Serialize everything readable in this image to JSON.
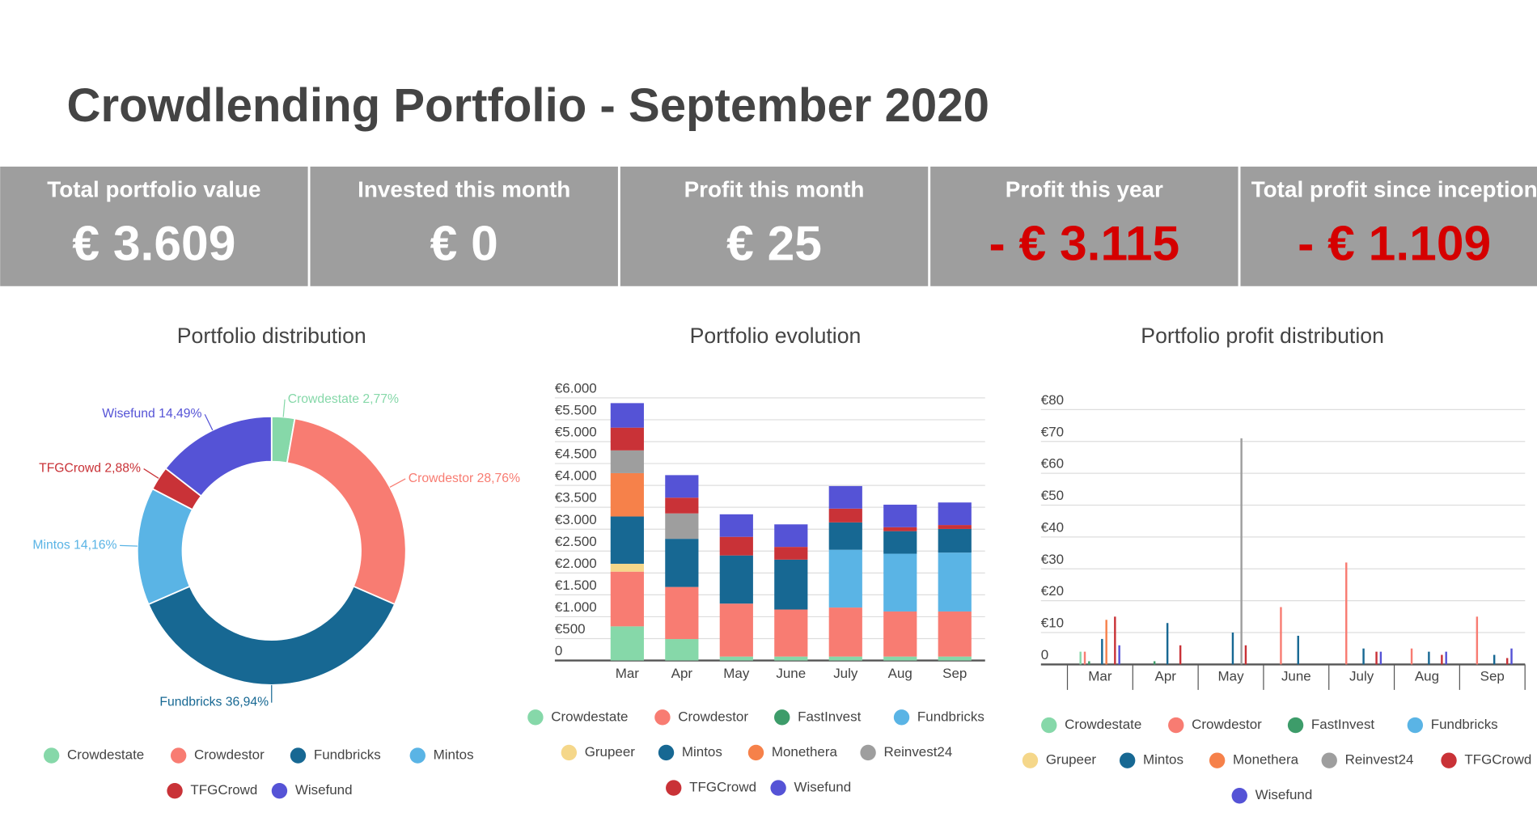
{
  "title": "Crowdlending Portfolio - September 2020",
  "kpis": [
    {
      "label": "Total portfolio value",
      "value": "€ 3.609",
      "color": "#ffffff"
    },
    {
      "label": "Invested this month",
      "value": "€ 0",
      "color": "#ffffff"
    },
    {
      "label": "Profit this month",
      "value": "€ 25",
      "color": "#ffffff"
    },
    {
      "label": "Profit this year",
      "value": "- € 3.115",
      "color": "#d50000"
    },
    {
      "label": "Total profit since inception",
      "value": "- € 1.109",
      "color": "#d50000"
    }
  ],
  "chart_data": [
    {
      "type": "donut",
      "title": "Portfolio distribution",
      "categories": [
        "Crowdestate",
        "Crowdestor",
        "Fundbricks",
        "Mintos",
        "TFGCrowd",
        "Wisefund"
      ],
      "values": [
        2.77,
        28.76,
        36.94,
        14.16,
        2.88,
        14.49
      ],
      "value_labels": [
        "2,77%",
        "28,76%",
        "36,94%",
        "14,16%",
        "2,88%",
        "14,49%"
      ],
      "colors": [
        "#86d8a9",
        "#f87c72",
        "#176893",
        "#5ab4e5",
        "#c93237",
        "#5553d6"
      ]
    },
    {
      "type": "stacked_bar",
      "title": "Portfolio evolution",
      "categories": [
        "Mar",
        "Apr",
        "May",
        "June",
        "July",
        "Aug",
        "Sep"
      ],
      "series": [
        {
          "name": "Crowdestate",
          "color": "#86d8a9",
          "values": [
            780,
            490,
            90,
            90,
            90,
            90,
            90
          ]
        },
        {
          "name": "Crowdestor",
          "color": "#f87c72",
          "values": [
            1250,
            1190,
            1210,
            1075,
            1120,
            1030,
            1030
          ]
        },
        {
          "name": "FastInvest",
          "color": "#3d9c6a",
          "values": [
            0,
            0,
            0,
            0,
            0,
            0,
            0
          ]
        },
        {
          "name": "Fundbricks",
          "color": "#5ab4e5",
          "values": [
            0,
            0,
            0,
            0,
            1320,
            1320,
            1345
          ]
        },
        {
          "name": "Grupeer",
          "color": "#f5d78a",
          "values": [
            180,
            0,
            0,
            0,
            0,
            0,
            0
          ]
        },
        {
          "name": "Mintos",
          "color": "#176893",
          "values": [
            1080,
            1100,
            1100,
            1140,
            625,
            515,
            540
          ]
        },
        {
          "name": "Monethera",
          "color": "#f6814a",
          "values": [
            990,
            0,
            0,
            0,
            0,
            0,
            0
          ]
        },
        {
          "name": "Reinvest24",
          "color": "#9e9e9e",
          "values": [
            520,
            580,
            0,
            0,
            0,
            0,
            0
          ]
        },
        {
          "name": "TFGCrowd",
          "color": "#c93237",
          "values": [
            520,
            360,
            425,
            290,
            315,
            90,
            90
          ]
        },
        {
          "name": "Wisefund",
          "color": "#5553d6",
          "values": [
            560,
            515,
            515,
            515,
            515,
            515,
            515
          ]
        }
      ],
      "ylim": [
        0,
        6000
      ],
      "yticks": [
        0,
        {
          "value": 500,
          "label": "€500"
        },
        {
          "value": 1000,
          "label": "€1.000"
        },
        {
          "value": 1500,
          "label": "€1.500"
        },
        {
          "value": 2000,
          "label": "€2.000"
        },
        {
          "value": 2500,
          "label": "€2.500"
        },
        {
          "value": 3000,
          "label": "€3.000"
        },
        {
          "value": 3500,
          "label": "€3.500"
        },
        {
          "value": 4000,
          "label": "€4.000"
        },
        {
          "value": 4500,
          "label": "€4.500"
        },
        {
          "value": 5000,
          "label": "€5.000"
        },
        {
          "value": 5500,
          "label": "€5.500"
        },
        {
          "value": 6000,
          "label": "€6.000"
        }
      ],
      "grid": true
    },
    {
      "type": "grouped_bar",
      "title": "Portfolio profit distribution",
      "categories": [
        "Mar",
        "Apr",
        "May",
        "June",
        "July",
        "Aug",
        "Sep"
      ],
      "series": [
        {
          "name": "Crowdestate",
          "color": "#86d8a9",
          "values": [
            4,
            0,
            0,
            0,
            0,
            0,
            0
          ]
        },
        {
          "name": "Crowdestor",
          "color": "#f87c72",
          "values": [
            4,
            0,
            0,
            18,
            32,
            5,
            15
          ]
        },
        {
          "name": "FastInvest",
          "color": "#3d9c6a",
          "values": [
            1,
            1,
            0,
            0,
            0,
            0,
            0
          ]
        },
        {
          "name": "Fundbricks",
          "color": "#5ab4e5",
          "values": [
            0,
            0,
            0,
            0,
            0,
            0,
            0
          ]
        },
        {
          "name": "Grupeer",
          "color": "#f5d78a",
          "values": [
            0,
            0,
            0,
            0,
            0,
            0,
            0
          ]
        },
        {
          "name": "Mintos",
          "color": "#176893",
          "values": [
            8,
            13,
            10,
            9,
            5,
            4,
            3
          ]
        },
        {
          "name": "Monethera",
          "color": "#f6814a",
          "values": [
            14,
            0,
            0,
            0,
            0,
            0,
            0
          ]
        },
        {
          "name": "Reinvest24",
          "color": "#9e9e9e",
          "values": [
            0,
            0,
            71,
            0,
            0,
            0,
            0
          ]
        },
        {
          "name": "TFGCrowd",
          "color": "#c93237",
          "values": [
            15,
            6,
            6,
            0,
            4,
            3,
            2
          ]
        },
        {
          "name": "Wisefund",
          "color": "#5553d6",
          "values": [
            6,
            0,
            0,
            0,
            4,
            4,
            5
          ]
        }
      ],
      "ylim": [
        0,
        80
      ],
      "yticks": [
        0,
        {
          "value": 10,
          "label": "€10"
        },
        {
          "value": 20,
          "label": "€20"
        },
        {
          "value": 30,
          "label": "€30"
        },
        {
          "value": 40,
          "label": "€40"
        },
        {
          "value": 50,
          "label": "€50"
        },
        {
          "value": 60,
          "label": "€60"
        },
        {
          "value": 70,
          "label": "€70"
        },
        {
          "value": 80,
          "label": "€80"
        }
      ],
      "grid": true
    }
  ]
}
